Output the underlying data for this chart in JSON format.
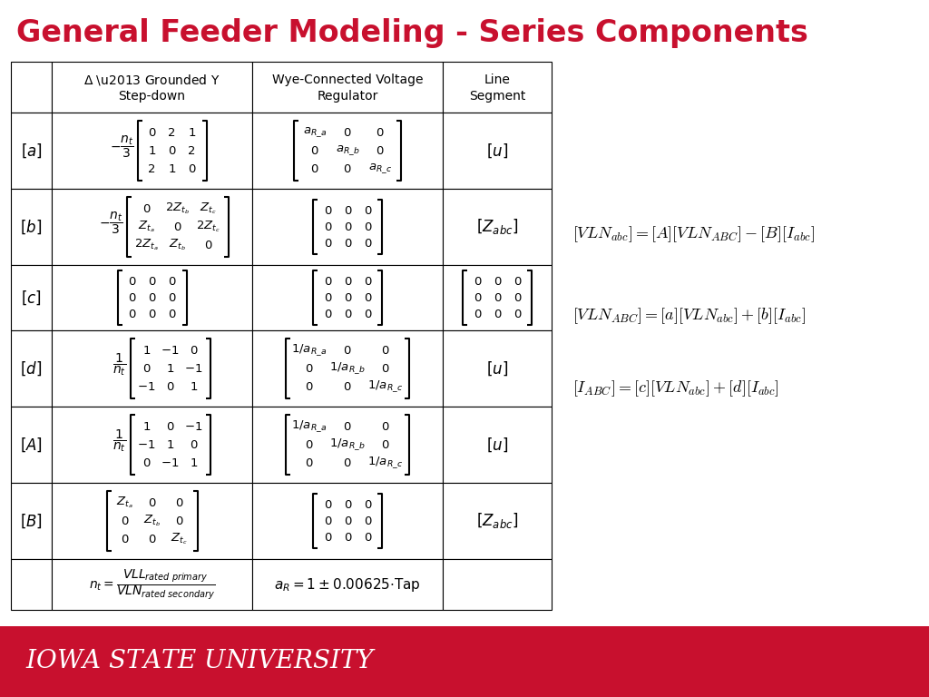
{
  "title": "General Feeder Modeling - Series Components",
  "title_color": "#C8102E",
  "title_fontsize": 24,
  "footer_text": "Iowa State University",
  "footer_bg": "#C8102E",
  "footer_text_color": "#FFFFFF",
  "equations": [
    "$[VLN_{abc}] = [A][VLN_{ABC}] - [B][I_{abc}]$",
    "$[VLN_{ABC}] = [a][VLN_{abc}] + [b][I_{abc}]$",
    "$[I_{ABC}] = [c][VLN_{abc}] + [d][I_{abc}]$"
  ],
  "background_color": "#FFFFFF"
}
